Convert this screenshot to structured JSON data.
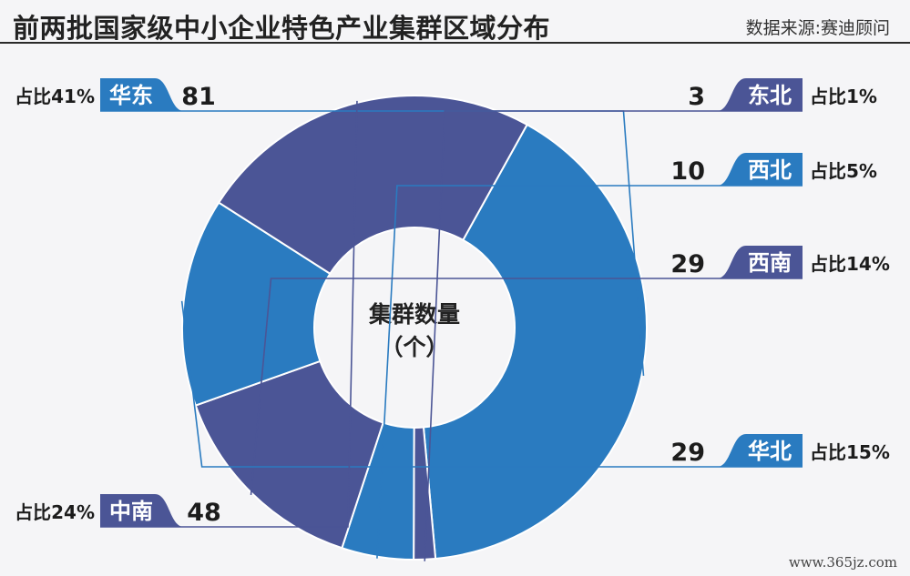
{
  "header": {
    "title": "前两批国家级中小企业特色产业集群区域分布",
    "source": "数据来源:赛迪顾问"
  },
  "watermark": "www.365jz.com",
  "chart_data": {
    "type": "pie",
    "variant": "donut",
    "center_label": [
      "集群数量",
      "（个）"
    ],
    "slices": [
      {
        "name": "华东",
        "value": 81,
        "share": "占比41%",
        "color": "#2a7bc0"
      },
      {
        "name": "东北",
        "value": 3,
        "share": "占比1%",
        "color": "#4b5596"
      },
      {
        "name": "西北",
        "value": 10,
        "share": "占比5%",
        "color": "#2a7bc0"
      },
      {
        "name": "西南",
        "value": 29,
        "share": "占比14%",
        "color": "#4b5596"
      },
      {
        "name": "华北",
        "value": 29,
        "share": "占比15%",
        "color": "#2a7bc0"
      },
      {
        "name": "中南",
        "value": 48,
        "share": "占比24%",
        "color": "#4b5596"
      }
    ]
  }
}
